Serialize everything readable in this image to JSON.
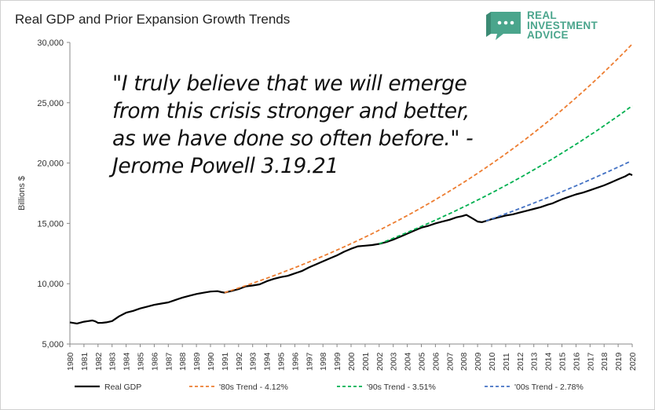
{
  "chart_data": {
    "type": "line",
    "title": "Real GDP and Prior Expansion Growth Trends",
    "ylabel": "Billions $",
    "xlabel": "",
    "xlim": [
      1980,
      2020
    ],
    "ylim": [
      5000,
      30000
    ],
    "y_ticks": [
      "5,000",
      "10,000",
      "15,000",
      "20,000",
      "25,000",
      "30,000"
    ],
    "y_tick_values": [
      5000,
      10000,
      15000,
      20000,
      25000,
      30000
    ],
    "x_ticks": [
      "1980",
      "1981",
      "1982",
      "1983",
      "1984",
      "1985",
      "1986",
      "1987",
      "1988",
      "1989",
      "1990",
      "1991",
      "1992",
      "1993",
      "1994",
      "1995",
      "1996",
      "1997",
      "1998",
      "1999",
      "2000",
      "2001",
      "2002",
      "2003",
      "2004",
      "2005",
      "2006",
      "2007",
      "2008",
      "2009",
      "2010",
      "2011",
      "2012",
      "2013",
      "2014",
      "2015",
      "2016",
      "2017",
      "2018",
      "2019",
      "2020"
    ],
    "legend_position": "bottom",
    "grid": false,
    "series": [
      {
        "name": "Real GDP",
        "color": "#000000",
        "dash": "solid",
        "x": [
          1980,
          1980.5,
          1981,
          1981.3,
          1981.6,
          1981.8,
          1982,
          1982.3,
          1982.6,
          1983,
          1983.5,
          1984,
          1984.5,
          1985,
          1985.5,
          1986,
          1986.5,
          1987,
          1987.5,
          1988,
          1988.5,
          1989,
          1989.5,
          1990,
          1990.5,
          1990.8,
          1991,
          1991.5,
          1992,
          1992.5,
          1993,
          1993.5,
          1994,
          1994.5,
          1995,
          1995.5,
          1996,
          1996.5,
          1997,
          1997.5,
          1998,
          1998.5,
          1999,
          1999.5,
          2000,
          2000.5,
          2001,
          2001.5,
          2002,
          2002.5,
          2003,
          2003.5,
          2004,
          2004.5,
          2005,
          2005.5,
          2006,
          2006.5,
          2007,
          2007.5,
          2007.9,
          2008.2,
          2008.5,
          2008.8,
          2009,
          2009.3,
          2009.6,
          2010,
          2010.5,
          2011,
          2011.5,
          2012,
          2012.5,
          2013,
          2013.5,
          2014,
          2014.3,
          2014.6,
          2015,
          2015.5,
          2016,
          2016.5,
          2017,
          2017.5,
          2018,
          2018.5,
          2019,
          2019.5,
          2019.8,
          2020
        ],
        "values": [
          6800,
          6700,
          6850,
          6900,
          6950,
          6880,
          6750,
          6760,
          6800,
          6900,
          7300,
          7600,
          7750,
          7950,
          8100,
          8250,
          8350,
          8450,
          8650,
          8850,
          9000,
          9150,
          9250,
          9350,
          9380,
          9300,
          9260,
          9400,
          9550,
          9780,
          9850,
          9950,
          10200,
          10400,
          10550,
          10650,
          10850,
          11050,
          11350,
          11600,
          11850,
          12100,
          12350,
          12650,
          12900,
          13100,
          13150,
          13200,
          13300,
          13450,
          13650,
          13900,
          14150,
          14400,
          14650,
          14800,
          15000,
          15150,
          15300,
          15500,
          15600,
          15700,
          15500,
          15300,
          15150,
          15100,
          15200,
          15350,
          15500,
          15650,
          15750,
          15900,
          16050,
          16200,
          16350,
          16550,
          16650,
          16800,
          17000,
          17200,
          17400,
          17550,
          17750,
          17950,
          18150,
          18400,
          18650,
          18900,
          19100,
          19000
        ]
      },
      {
        "name": "'80s Trend - 4.12%",
        "color": "#ed7d31",
        "dash": "dashed",
        "start_year": 1991,
        "start_value": 9260,
        "growth_rate": 0.0412,
        "end_year": 2020
      },
      {
        "name": "'90s Trend - 3.51%",
        "color": "#00b050",
        "dash": "dashed",
        "start_year": 2002,
        "start_value": 13300,
        "growth_rate": 0.0351,
        "end_year": 2020
      },
      {
        "name": "'00s Trend - 2.78%",
        "color": "#4472c4",
        "dash": "dashed",
        "start_year": 2009.6,
        "start_value": 15200,
        "growth_rate": 0.0278,
        "end_year": 2020
      }
    ],
    "annotation_lines": [
      "\"I truly believe that we will emerge",
      "from this crisis stronger and better,",
      "as we have done so often before.\" -",
      "Jerome Powell 3.19.21"
    ]
  },
  "logo": {
    "line1": "REAL",
    "line2": "INVESTMENT",
    "line3": "ADVICE",
    "color": "#4aa58c"
  }
}
